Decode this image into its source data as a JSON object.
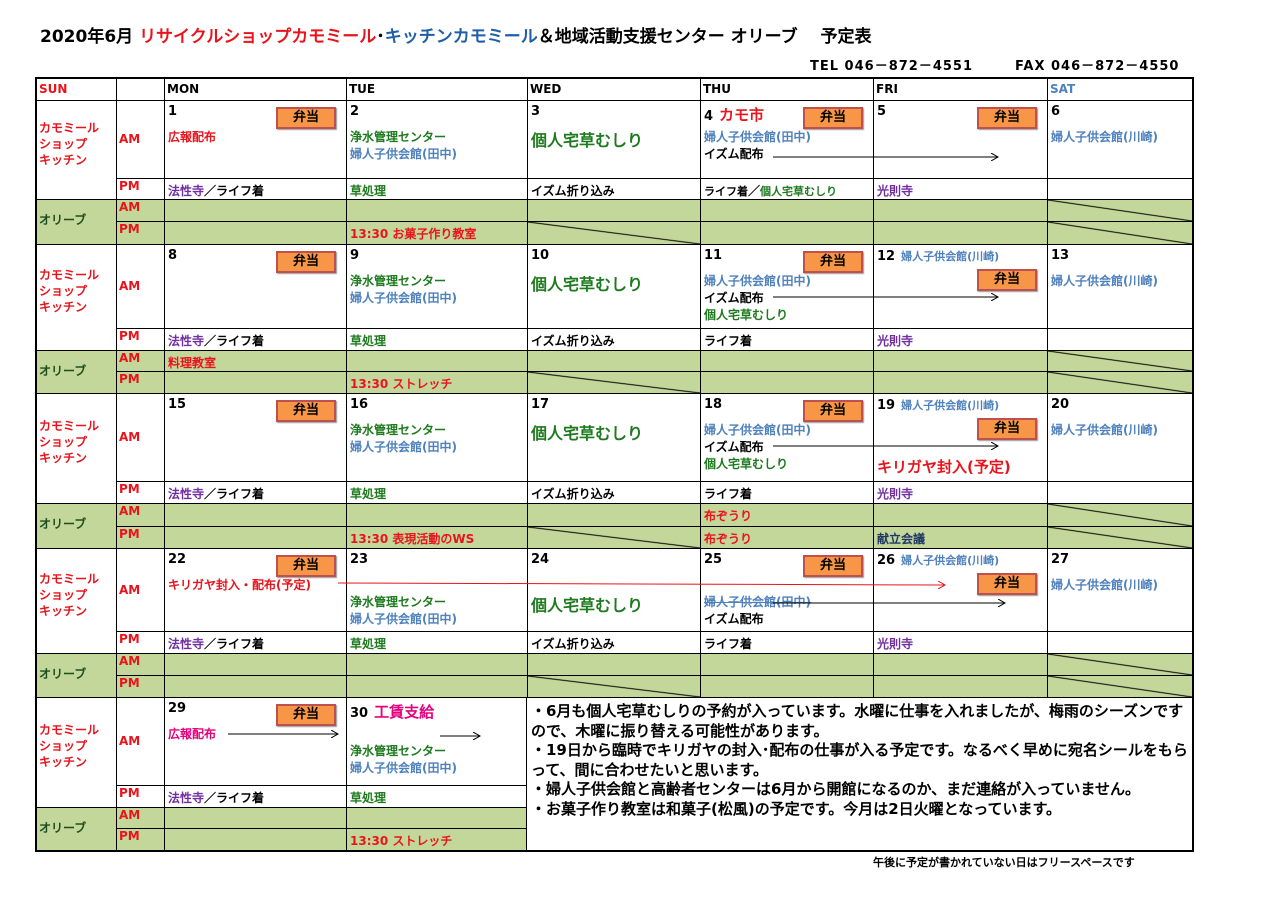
{
  "title": {
    "prefix": "2020年6月 ",
    "shop": "リサイクルショップカモミール",
    "dot": "･",
    "kitchen": "キッチンカモミール",
    "rest": "＆地域活動支援センター オリーブ　 予定表"
  },
  "contact": {
    "tel": "TEL 046－872－4551",
    "fax": "FAX 046－872－4550"
  },
  "colors": {
    "red": "#e8141c",
    "blue": "#4f81bd",
    "green": "#1e7a1e",
    "purple": "#7030a0",
    "black": "#000000",
    "navy": "#1f3864",
    "pink": "#e6007e",
    "olive_bg": "#c4d79b",
    "bento_bg": "#f79646",
    "dark_green": "#1e4d1e"
  },
  "header": {
    "sun": "SUN",
    "days": [
      "MON",
      "TUE",
      "WED",
      "THU",
      "FRI",
      "SAT"
    ]
  },
  "labels": {
    "shop": "カモミール\nショップ\nキッチン",
    "olive": "オリーブ",
    "am": "AM",
    "pm": "PM",
    "bento": "弁当"
  },
  "weeks": [
    {
      "days": [
        {
          "date": "1",
          "bento": "top",
          "am": [
            {
              "t": "広報配布",
              "c": "red"
            }
          ],
          "pm": [
            {
              "t": "法性寺",
              "c": "purple"
            },
            {
              "t": "／ライフ着",
              "c": "black"
            }
          ]
        },
        {
          "date": "2",
          "am": [
            {
              "t": "浄水管理センター",
              "c": "green"
            },
            {
              "t": "婦人子供会館(田中)",
              "c": "blue"
            }
          ],
          "pm": [
            {
              "t": "草処理",
              "c": "green"
            }
          ],
          "opm": {
            "t": "13:30  お菓子作り教室",
            "c": "red"
          }
        },
        {
          "date": "3",
          "am": [
            {
              "t": "個人宅草むしり",
              "c": "green",
              "s": "big"
            }
          ],
          "pm": [
            {
              "t": "イズム折り込み",
              "c": "black"
            }
          ],
          "opm_slash": true
        },
        {
          "date": "4",
          "heading": {
            "t": "カモ市",
            "c": "red"
          },
          "bento": "top",
          "am": [
            {
              "t": "婦人子供会館(田中)",
              "c": "blue"
            },
            {
              "t": "イズム配布",
              "c": "black"
            }
          ],
          "pm": [
            {
              "t": "ライフ着",
              "c": "black",
              "s": "small"
            },
            {
              "t": "／",
              "c": "black"
            },
            {
              "t": "個人宅草むしり",
              "c": "green",
              "s": "small"
            }
          ]
        },
        {
          "date": "5",
          "bento": "top",
          "am": [],
          "pm": [
            {
              "t": "光則寺",
              "c": "purple"
            }
          ]
        },
        {
          "date": "6",
          "am": [
            {
              "t": "婦人子供会館(川崎)",
              "c": "blue"
            }
          ],
          "pm": [],
          "oam_slash": true,
          "opm_slash": true
        }
      ]
    },
    {
      "days": [
        {
          "date": "8",
          "bento": "top",
          "am": [],
          "pm": [
            {
              "t": "法性寺",
              "c": "purple"
            },
            {
              "t": "／ライフ着",
              "c": "black"
            }
          ],
          "oam": {
            "t": "料理教室",
            "c": "red"
          }
        },
        {
          "date": "9",
          "am": [
            {
              "t": "浄水管理センター",
              "c": "green"
            },
            {
              "t": "婦人子供会館(田中)",
              "c": "blue"
            }
          ],
          "pm": [
            {
              "t": "草処理",
              "c": "green"
            }
          ],
          "opm": {
            "t": "13:30  ストレッチ",
            "c": "red"
          }
        },
        {
          "date": "10",
          "am": [
            {
              "t": "個人宅草むしり",
              "c": "green",
              "s": "big"
            }
          ],
          "pm": [
            {
              "t": "イズム折り込み",
              "c": "black"
            }
          ],
          "opm_slash": true
        },
        {
          "date": "11",
          "bento": "top",
          "am": [
            {
              "t": "婦人子供会館(田中)",
              "c": "blue"
            },
            {
              "t": "イズム配布",
              "c": "black"
            },
            {
              "t": "個人宅草むしり",
              "c": "green"
            }
          ],
          "pm": [
            {
              "t": "ライフ着",
              "c": "black"
            }
          ]
        },
        {
          "date": "12",
          "heading": {
            "t": "婦人子供会館(川崎)",
            "c": "blue",
            "s": "small"
          },
          "bento": "low",
          "am": [],
          "pm": [
            {
              "t": "光則寺",
              "c": "purple"
            }
          ]
        },
        {
          "date": "13",
          "am": [
            {
              "t": "婦人子供会館(川崎)",
              "c": "blue"
            }
          ],
          "pm": [],
          "oam_slash": true,
          "opm_slash": true
        }
      ]
    },
    {
      "days": [
        {
          "date": "15",
          "bento": "top",
          "am": [],
          "pm": [
            {
              "t": "法性寺",
              "c": "purple"
            },
            {
              "t": "／ライフ着",
              "c": "black"
            }
          ]
        },
        {
          "date": "16",
          "am": [
            {
              "t": "浄水管理センター",
              "c": "green"
            },
            {
              "t": "婦人子供会館(田中)",
              "c": "blue"
            }
          ],
          "pm": [
            {
              "t": "草処理",
              "c": "green"
            }
          ],
          "opm": {
            "t": "13:30  表現活動のWS",
            "c": "red"
          }
        },
        {
          "date": "17",
          "am": [
            {
              "t": "個人宅草むしり",
              "c": "green",
              "s": "big"
            }
          ],
          "pm": [
            {
              "t": "イズム折り込み",
              "c": "black"
            }
          ],
          "opm_slash": true
        },
        {
          "date": "18",
          "bento": "top",
          "am": [
            {
              "t": "婦人子供会館(田中)",
              "c": "blue"
            },
            {
              "t": "イズム配布",
              "c": "black"
            },
            {
              "t": "個人宅草むしり",
              "c": "green"
            }
          ],
          "pm": [
            {
              "t": "ライフ着",
              "c": "black"
            }
          ],
          "oam": {
            "t": "布ぞうり",
            "c": "red"
          },
          "opm": {
            "t": "布ぞうり",
            "c": "red"
          }
        },
        {
          "date": "19",
          "heading": {
            "t": "婦人子供会館(川崎)",
            "c": "blue",
            "s": "small"
          },
          "bento": "low",
          "am": [
            {
              "t": "",
              "c": "black"
            },
            {
              "t": "",
              "c": "black"
            },
            {
              "t": "キリガヤ封入(予定)",
              "c": "red",
              "s": "large"
            }
          ],
          "pm": [
            {
              "t": "光則寺",
              "c": "purple"
            }
          ],
          "opm": {
            "t": "献立会議",
            "c": "navy"
          }
        },
        {
          "date": "20",
          "am": [
            {
              "t": "婦人子供会館(川崎)",
              "c": "blue"
            }
          ],
          "pm": [],
          "oam_slash": true,
          "opm_slash": true
        }
      ]
    },
    {
      "days": [
        {
          "date": "22",
          "bento": "top",
          "am": [
            {
              "t": "キリガヤ封入・配布(予定)",
              "c": "red"
            }
          ],
          "pm": [
            {
              "t": "法性寺",
              "c": "purple"
            },
            {
              "t": "／ライフ着",
              "c": "black"
            }
          ]
        },
        {
          "date": "23",
          "am": [
            {
              "t": "",
              "c": "black"
            },
            {
              "t": "浄水管理センター",
              "c": "green"
            },
            {
              "t": "婦人子供会館(田中)",
              "c": "blue"
            }
          ],
          "pm": [
            {
              "t": "草処理",
              "c": "green"
            }
          ]
        },
        {
          "date": "24",
          "am": [
            {
              "t": "",
              "c": "black"
            },
            {
              "t": "個人宅草むしり",
              "c": "green",
              "s": "big"
            }
          ],
          "pm": [
            {
              "t": "イズム折り込み",
              "c": "black"
            }
          ],
          "opm_slash": true
        },
        {
          "date": "25",
          "bento": "top",
          "am": [
            {
              "t": "",
              "c": "black"
            },
            {
              "t": "婦人子供会館(田中)",
              "c": "blue",
              "strike": true
            },
            {
              "t": "イズム配布",
              "c": "black"
            }
          ],
          "pm": [
            {
              "t": "ライフ着",
              "c": "black"
            }
          ]
        },
        {
          "date": "26",
          "heading": {
            "t": "婦人子供会館(川崎)",
            "c": "blue",
            "s": "small"
          },
          "bento": "low",
          "am": [],
          "pm": [
            {
              "t": "光則寺",
              "c": "purple"
            }
          ]
        },
        {
          "date": "27",
          "am": [
            {
              "t": "婦人子供会館(川崎)",
              "c": "blue"
            }
          ],
          "pm": [],
          "oam_slash": true,
          "opm_slash": true
        }
      ]
    },
    {
      "days": [
        {
          "date": "29",
          "bento": "top",
          "am": [
            {
              "t": "広報配布",
              "c": "pink"
            }
          ],
          "pm": [
            {
              "t": "法性寺",
              "c": "purple"
            },
            {
              "t": "／ライフ着",
              "c": "black"
            }
          ]
        },
        {
          "date": "30",
          "heading": {
            "t": "工賃支給",
            "c": "pink"
          },
          "am": [
            {
              "t": "",
              "c": "black"
            },
            {
              "t": "浄水管理センター",
              "c": "green"
            },
            {
              "t": "婦人子供会館(田中)",
              "c": "blue"
            }
          ],
          "pm": [
            {
              "t": "草処理",
              "c": "green"
            }
          ],
          "opm": {
            "t": "13:30  ストレッチ",
            "c": "red"
          }
        }
      ]
    }
  ],
  "notes": [
    "・6月も個人宅草むしりの予約が入っています。水曜に仕事を入れましたが、梅雨のシーズンですので、木曜に振り替える可能性があります。",
    "・19日から臨時でキリガヤの封入･配布の仕事が入る予定です。なるべく早めに宛名シールをもらって、間に合わせたいと思います。",
    "・婦人子供会館と高齢者センターは6月から開館になるのか、まだ連絡が入っていません。",
    "・お菓子作り教室は和菓子(松風)の予定です。今月は2日火曜となっています。"
  ],
  "footer": "午後に予定が書かれていない日はフリースペースです"
}
